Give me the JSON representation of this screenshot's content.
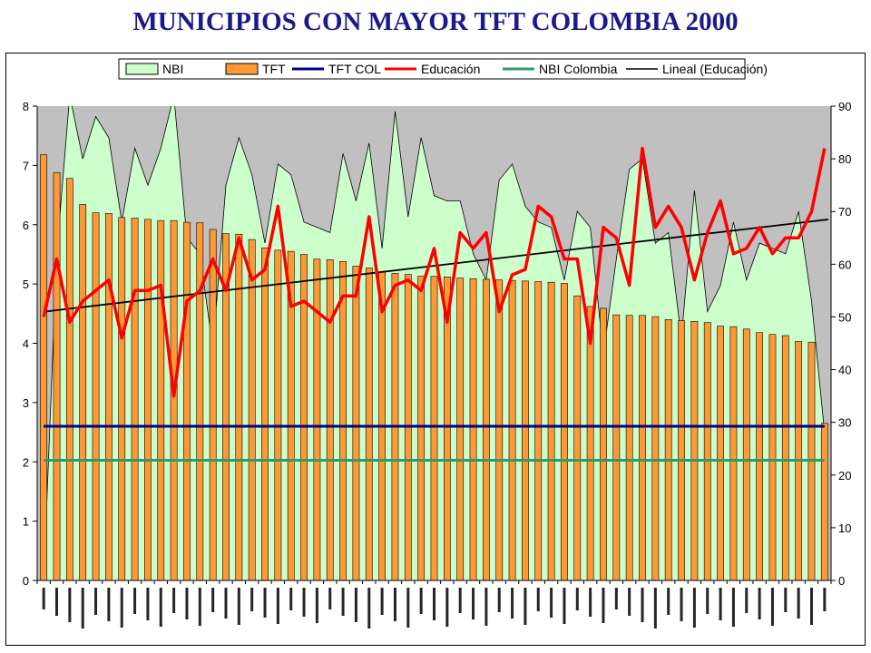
{
  "title": "MUNICIPIOS CON MAYOR TFT COLOMBIA 2000",
  "legend": {
    "items": [
      {
        "label": "NBI",
        "kind": "area",
        "fill": "#ccffcc",
        "stroke": "#000000"
      },
      {
        "label": "TFT",
        "kind": "bar",
        "fill": "#ff9933",
        "stroke": "#000000"
      },
      {
        "label": "TFT COL",
        "kind": "line",
        "stroke": "#000080"
      },
      {
        "label": "Educación",
        "kind": "line",
        "stroke": "#ff0000"
      },
      {
        "label": "NBI Colombia",
        "kind": "line",
        "stroke": "#339966"
      },
      {
        "label": "Lineal (Educación)",
        "kind": "line",
        "stroke": "#000000"
      }
    ]
  },
  "colors": {
    "plot_bg": "#c0c0c0",
    "nbi_fill": "#ccffcc",
    "tft_bar": "#ff9933",
    "tft_col": "#000080",
    "educacion": "#ff0000",
    "nbi_colombia": "#339966",
    "trend": "#000000",
    "title": "#1a1a8c"
  },
  "chart_data": {
    "type": "bar",
    "title": "MUNICIPIOS CON MAYOR TFT COLOMBIA 2000",
    "y_left": {
      "min": 0,
      "max": 8,
      "ticks": [
        0,
        1,
        2,
        3,
        4,
        5,
        6,
        7,
        8
      ]
    },
    "y_right": {
      "min": 0,
      "max": 90,
      "ticks": [
        0,
        10,
        20,
        30,
        40,
        50,
        60,
        70,
        80,
        90
      ]
    },
    "legend_position": "top",
    "grid": false,
    "category_labels_legible": false,
    "count": 61,
    "tft": [
      7.18,
      6.88,
      6.78,
      6.34,
      6.2,
      6.19,
      6.12,
      6.11,
      6.09,
      6.07,
      6.07,
      6.04,
      6.03,
      5.92,
      5.85,
      5.84,
      5.75,
      5.61,
      5.57,
      5.55,
      5.5,
      5.42,
      5.41,
      5.38,
      5.3,
      5.27,
      5.2,
      5.18,
      5.16,
      5.13,
      5.13,
      5.12,
      5.1,
      5.09,
      5.08,
      5.07,
      5.06,
      5.05,
      5.04,
      5.03,
      5.01,
      4.8,
      4.62,
      4.59,
      4.48,
      4.47,
      4.47,
      4.45,
      4.4,
      4.38,
      4.37,
      4.35,
      4.29,
      4.28,
      4.24,
      4.18,
      4.15,
      4.13,
      4.03,
      4.02,
      2.65
    ],
    "nbi": [
      0,
      62,
      92,
      80,
      88,
      84,
      68,
      82,
      75,
      82,
      92,
      65,
      62,
      44,
      75,
      84,
      77,
      64,
      79,
      77,
      68,
      67,
      66,
      81,
      72,
      83,
      63,
      89,
      69,
      84,
      73,
      72,
      72,
      62,
      57,
      76,
      79,
      71,
      68,
      67,
      57,
      70,
      67,
      43,
      61,
      78,
      80,
      64,
      66,
      46,
      74,
      51,
      56,
      68,
      57,
      64,
      63,
      62,
      70,
      53,
      28
    ],
    "educacion": [
      50,
      61,
      49,
      53,
      55,
      57,
      46,
      55,
      55,
      56,
      35,
      53,
      55,
      61,
      55,
      65,
      57,
      59,
      71,
      52,
      53,
      51,
      49,
      54,
      54,
      69,
      51,
      56,
      57,
      55,
      63,
      49,
      66,
      63,
      66,
      51,
      58,
      59,
      71,
      69,
      61,
      61,
      45,
      67,
      65,
      56,
      82,
      67,
      71,
      67,
      57,
      66,
      72,
      62,
      63,
      67,
      62,
      65,
      65,
      70,
      82
    ],
    "tft_col": 2.6,
    "nbi_colombia": 22.8,
    "trend_educacion": {
      "start": 51,
      "end": 68.5
    }
  }
}
